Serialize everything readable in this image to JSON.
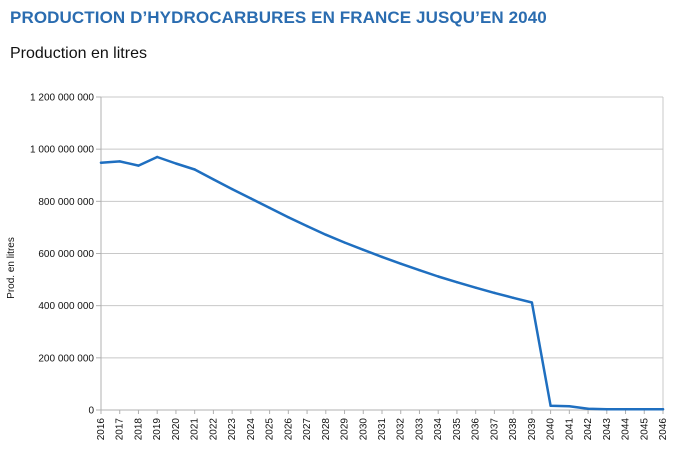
{
  "header": {
    "title": "PRODUCTION D’HYDROCARBURES EN FRANCE JUSQU’EN 2040",
    "subtitle": "Production en litres"
  },
  "chart_data": {
    "type": "line",
    "title": "PRODUCTION D’HYDROCARBURES EN FRANCE JUSQU’EN 2040",
    "subtitle": "Production en litres",
    "xlabel": "",
    "ylabel": "Prod. en litres",
    "ylim": [
      0,
      1200000000
    ],
    "yticks": [
      {
        "value": 0,
        "label": "0"
      },
      {
        "value": 200000000,
        "label": "200 000 000"
      },
      {
        "value": 400000000,
        "label": "400 000 000"
      },
      {
        "value": 600000000,
        "label": "600 000 000"
      },
      {
        "value": 800000000,
        "label": "800 000 000"
      },
      {
        "value": 1000000000,
        "label": "1 000 000 000"
      },
      {
        "value": 1200000000,
        "label": "1 200 000 000"
      }
    ],
    "grid": true,
    "legend": "none",
    "line_color": "#1f6fc0",
    "x": [
      "2016",
      "2017",
      "2018",
      "2019",
      "2020",
      "2021",
      "2022",
      "2023",
      "2024",
      "2025",
      "2026",
      "2027",
      "2028",
      "2029",
      "2030",
      "2031",
      "2032",
      "2033",
      "2034",
      "2035",
      "2036",
      "2037",
      "2038",
      "2039",
      "2040",
      "2041",
      "2042",
      "2043",
      "2044",
      "2045",
      "2046"
    ],
    "series": [
      {
        "values": [
          948000000,
          953000000,
          937000000,
          970000000,
          945000000,
          922000000,
          884000000,
          847000000,
          811000000,
          775000000,
          739000000,
          705000000,
          672000000,
          642000000,
          614000000,
          587000000,
          561000000,
          536000000,
          512000000,
          490000000,
          469000000,
          449000000,
          430000000,
          412000000,
          16000000,
          14000000,
          5000000,
          3000000,
          3000000,
          3000000,
          3000000
        ]
      }
    ]
  }
}
